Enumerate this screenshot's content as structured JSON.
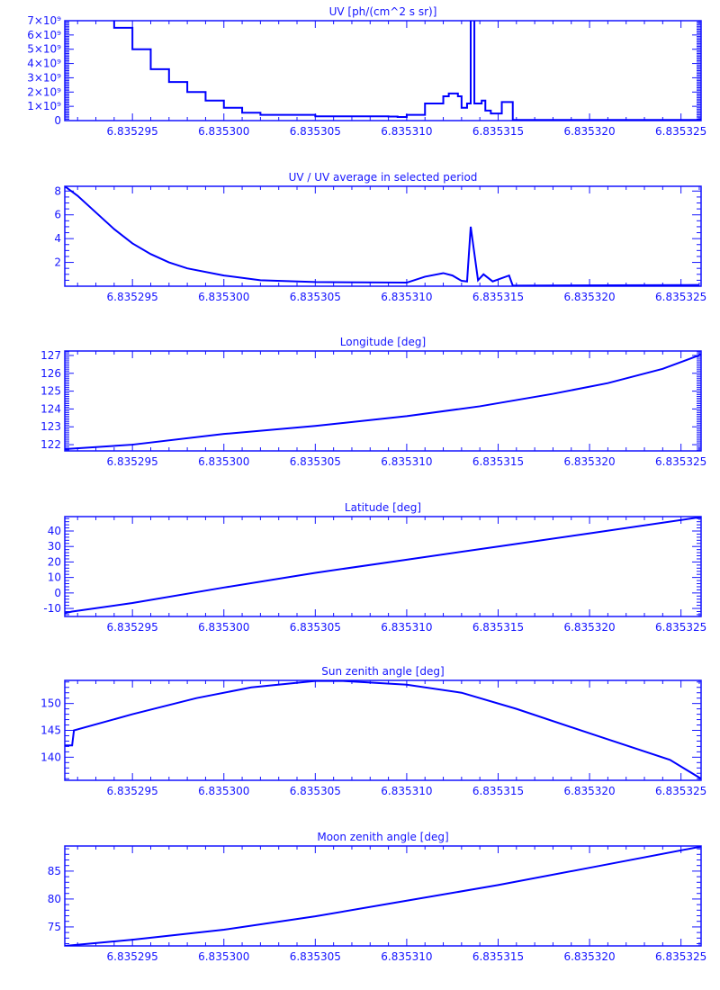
{
  "colors": {
    "axis": "#1414ff",
    "line": "#0000ff",
    "background": "#ffffff"
  },
  "x_ticks": [
    6.835295,
    6.8353,
    6.835305,
    6.83531,
    6.835315,
    6.83532,
    6.835325
  ],
  "x_tick_labels": [
    "6.835295",
    "6.835300",
    "6.835305",
    "6.835310",
    "6.835315",
    "6.835320",
    "6.835325"
  ],
  "chart_data": [
    {
      "type": "line",
      "title": "UV [ph/(cm^2 s sr)]",
      "xlabel": "",
      "ylabel": "",
      "xlim": [
        6.8352913,
        6.8353261
      ],
      "ylim": [
        0,
        7
      ],
      "yscale_note": "values in units of 10^9",
      "y_ticks": [
        0,
        1,
        2,
        3,
        4,
        5,
        6,
        7
      ],
      "y_tick_labels": [
        "0",
        "1×10⁹",
        "2×10⁹",
        "3×10⁹",
        "4×10⁹",
        "5×10⁹",
        "6×10⁹",
        "7×10⁹"
      ],
      "drawstyle": "steps",
      "x": [
        6.8352935,
        6.835294,
        6.835295,
        6.835296,
        6.835297,
        6.835298,
        6.835299,
        6.8353,
        6.835301,
        6.835302,
        6.835305,
        6.835309,
        6.8353095,
        6.83531,
        6.835311,
        6.835312,
        6.8353123,
        6.8353128,
        6.835313,
        6.8353133,
        6.8353135,
        6.8353137,
        6.8353141,
        6.8353143,
        6.8353146,
        6.8353152,
        6.8353158,
        6.83532,
        6.8353261
      ],
      "y": [
        7.5,
        6.5,
        5.0,
        3.6,
        2.7,
        2.0,
        1.4,
        0.9,
        0.55,
        0.4,
        0.3,
        0.28,
        0.25,
        0.4,
        1.2,
        1.7,
        1.9,
        1.7,
        0.9,
        1.2,
        8.0,
        1.2,
        1.4,
        0.7,
        0.5,
        1.3,
        0.05,
        0.05,
        0.15
      ]
    },
    {
      "type": "line",
      "title": "UV / UV average in selected period",
      "xlabel": "",
      "ylabel": "",
      "xlim": [
        6.8352913,
        6.8353261
      ],
      "ylim": [
        0,
        8.4
      ],
      "y_ticks": [
        2,
        4,
        6,
        8
      ],
      "y_tick_labels": [
        "2",
        "4",
        "6",
        "8"
      ],
      "x": [
        6.8352913,
        6.835292,
        6.835293,
        6.835294,
        6.835295,
        6.835296,
        6.835297,
        6.835298,
        6.8353,
        6.835302,
        6.835305,
        6.83531,
        6.835311,
        6.835312,
        6.8353125,
        6.835313,
        6.8353133,
        6.8353135,
        6.8353139,
        6.8353142,
        6.8353147,
        6.8353156,
        6.8353158,
        6.835326
      ],
      "y": [
        8.4,
        7.6,
        6.2,
        4.8,
        3.6,
        2.7,
        2.0,
        1.5,
        0.9,
        0.5,
        0.35,
        0.3,
        0.8,
        1.1,
        0.9,
        0.45,
        0.4,
        5.0,
        0.5,
        1.0,
        0.4,
        0.9,
        0.05,
        0.1
      ]
    },
    {
      "type": "line",
      "title": "Longitude [deg]",
      "xlabel": "",
      "ylabel": "",
      "xlim": [
        6.8352913,
        6.8353261
      ],
      "ylim": [
        121.65,
        127.25
      ],
      "y_ticks": [
        122,
        123,
        124,
        125,
        126,
        127
      ],
      "y_tick_labels": [
        "122",
        "123",
        "124",
        "125",
        "126",
        "127"
      ],
      "x": [
        6.8352913,
        6.835295,
        6.8353,
        6.835305,
        6.83531,
        6.835314,
        6.835318,
        6.835321,
        6.835324,
        6.8353261
      ],
      "y": [
        121.75,
        122.0,
        122.6,
        123.05,
        123.6,
        124.15,
        124.85,
        125.45,
        126.25,
        127.05
      ]
    },
    {
      "type": "line",
      "title": "Latitude [deg]",
      "xlabel": "",
      "ylabel": "",
      "xlim": [
        6.8352913,
        6.8353261
      ],
      "ylim": [
        -15.2,
        49.3
      ],
      "y_ticks": [
        -10,
        0,
        10,
        20,
        30,
        40
      ],
      "y_tick_labels": [
        "-10",
        "0",
        "10",
        "20",
        "30",
        "40"
      ],
      "x": [
        6.8352913,
        6.8352917,
        6.835295,
        6.8353,
        6.835305,
        6.83531,
        6.835315,
        6.83532,
        6.8353261
      ],
      "y": [
        -13,
        -12,
        -6.5,
        3.5,
        13,
        21.5,
        30,
        38.5,
        49
      ]
    },
    {
      "type": "line",
      "title": "Sun zenith angle [deg]",
      "xlabel": "",
      "ylabel": "",
      "xlim": [
        6.8352913,
        6.8353261
      ],
      "ylim": [
        135.7,
        154.3
      ],
      "y_ticks": [
        140,
        145,
        150
      ],
      "y_tick_labels": [
        "140",
        "145",
        "150"
      ],
      "x": [
        6.8352913,
        6.8352917,
        6.8352918,
        6.835295,
        6.8352985,
        6.8353015,
        6.835305,
        6.8353065,
        6.83531,
        6.835313,
        6.835316,
        6.8353204,
        6.8353244,
        6.8353261
      ],
      "y": [
        142.2,
        142.2,
        145.0,
        148.0,
        151.0,
        153.0,
        154.2,
        154.2,
        153.5,
        152.0,
        149.0,
        144.0,
        139.5,
        136.0
      ]
    },
    {
      "type": "line",
      "title": "Moon zenith angle [deg]",
      "xlabel": "",
      "ylabel": "",
      "xlim": [
        6.8352913,
        6.8353261
      ],
      "ylim": [
        71.6,
        89.5
      ],
      "y_ticks": [
        75,
        80,
        85
      ],
      "y_tick_labels": [
        "75",
        "80",
        "85"
      ],
      "x": [
        6.8352913,
        6.835295,
        6.8353,
        6.835305,
        6.83531,
        6.835315,
        6.83532,
        6.8353261
      ],
      "y": [
        71.6,
        72.7,
        74.5,
        76.9,
        79.7,
        82.5,
        85.6,
        89.4
      ]
    }
  ]
}
